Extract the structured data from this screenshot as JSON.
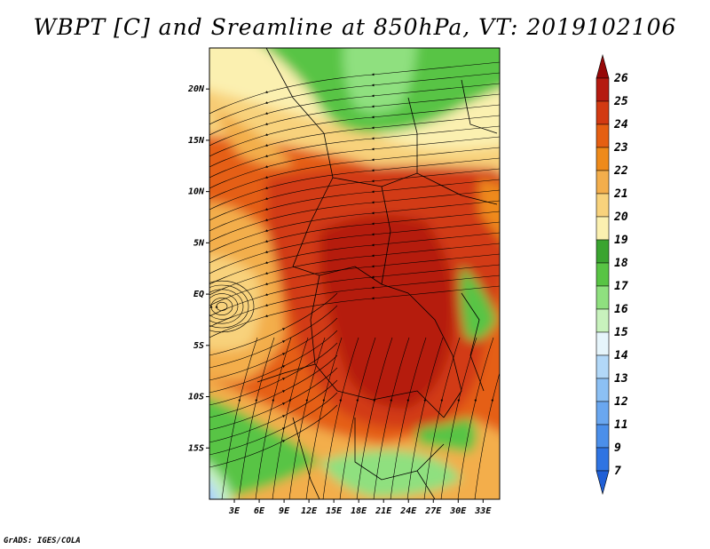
{
  "title": "WBPT [C] and Sreamline at 850hPa, VT: 2019102106",
  "footer": "GrADS: IGES/COLA",
  "map": {
    "variable": "WBPT",
    "units": "C",
    "level": "850hPa",
    "valid_time": "2019102106",
    "lon_range": [
      0,
      35
    ],
    "lat_range": [
      -20,
      24
    ],
    "lat_ticks": [
      {
        "value": 20,
        "label": "20N"
      },
      {
        "value": 15,
        "label": "15N"
      },
      {
        "value": 10,
        "label": "10N"
      },
      {
        "value": 5,
        "label": "5N"
      },
      {
        "value": 0,
        "label": "EQ"
      },
      {
        "value": -5,
        "label": "5S"
      },
      {
        "value": -10,
        "label": "10S"
      },
      {
        "value": -15,
        "label": "15S"
      }
    ],
    "lon_ticks": [
      {
        "value": 3,
        "label": "3E"
      },
      {
        "value": 6,
        "label": "6E"
      },
      {
        "value": 9,
        "label": "9E"
      },
      {
        "value": 12,
        "label": "12E"
      },
      {
        "value": 15,
        "label": "15E"
      },
      {
        "value": 18,
        "label": "18E"
      },
      {
        "value": 21,
        "label": "21E"
      },
      {
        "value": 24,
        "label": "24E"
      },
      {
        "value": 27,
        "label": "27E"
      },
      {
        "value": 30,
        "label": "30E"
      },
      {
        "value": 33,
        "label": "33E"
      }
    ]
  },
  "colorbar": {
    "levels": [
      "7",
      "9",
      "11",
      "12",
      "13",
      "14",
      "15",
      "16",
      "17",
      "18",
      "19",
      "20",
      "21",
      "22",
      "23",
      "24",
      "25",
      "26"
    ],
    "colors": [
      "#1f5fd6",
      "#2f74e2",
      "#4b8fea",
      "#6aa7f0",
      "#8cc0f4",
      "#b2d8f8",
      "#e6f5fb",
      "#c8f2bd",
      "#8fe07f",
      "#58c444",
      "#3aa430",
      "#fbf0b0",
      "#f8d27c",
      "#f3ae4c",
      "#ee8a1a",
      "#e55f12",
      "#d23a12",
      "#b51a10",
      "#960808"
    ]
  },
  "fields": {
    "colors": {
      "dark_green": "#3aa430",
      "green": "#58c444",
      "light_green": "#8fe07f",
      "pale_green": "#c8f2bd",
      "cream": "#fbf0b0",
      "yellow": "#f8d27c",
      "light_orange": "#f3ae4c",
      "orange": "#ee8a1a",
      "dark_orange": "#e55f12",
      "red": "#d23a12",
      "deep_red": "#b51a10",
      "light_blue": "#b2d8f8",
      "blue": "#6aa7f0"
    }
  }
}
